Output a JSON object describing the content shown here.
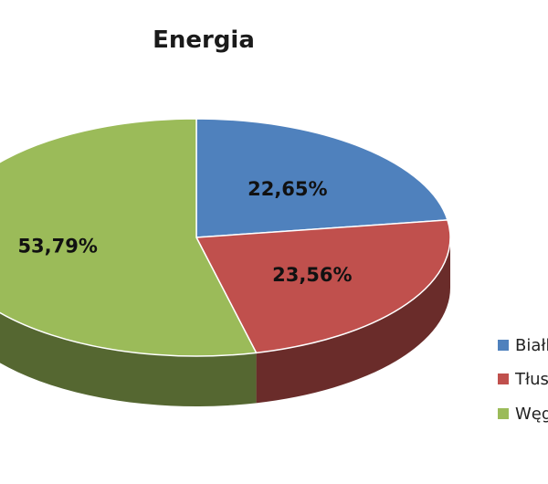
{
  "chart_data": {
    "type": "pie",
    "title": "Energia",
    "categories": [
      "Białk",
      "Tłus",
      "Węg"
    ],
    "values": [
      22.65,
      23.56,
      53.79
    ],
    "labels": [
      "22,65%",
      "23,56%",
      "53,79%"
    ],
    "colors": [
      "#4f81bd",
      "#c0504d",
      "#9bbb59"
    ],
    "legend_position": "right",
    "style": "3d"
  }
}
